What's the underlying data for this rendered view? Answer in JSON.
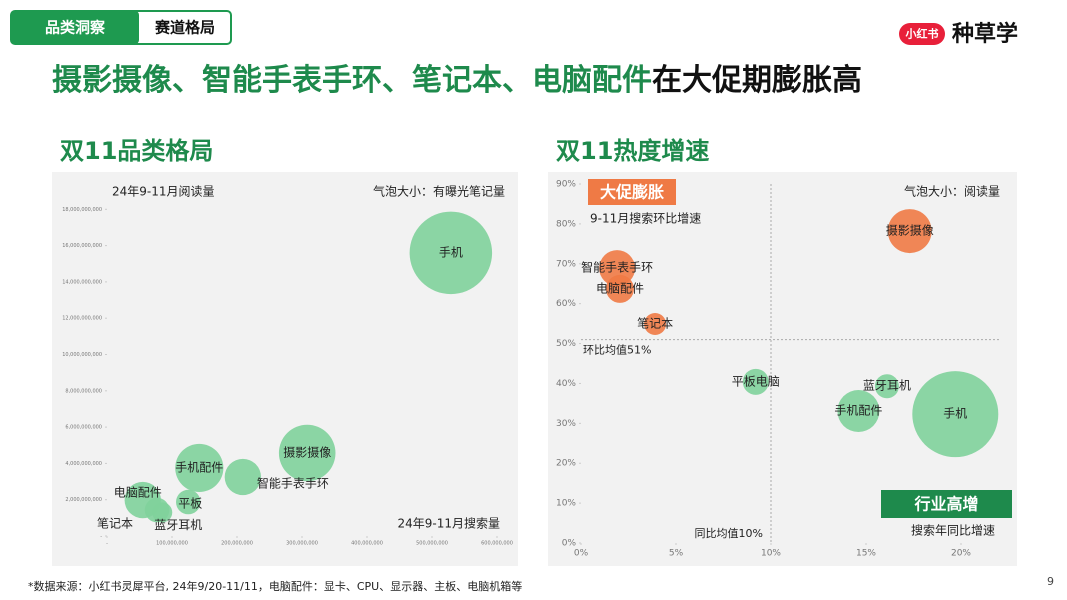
{
  "page": {
    "tabs": [
      "品类洞察",
      "赛道格局"
    ],
    "logo": "小红书",
    "brand": "种草学",
    "headline_green": "摄影摄像、智能手表手环、笔记本、电脑配件",
    "headline_black": "在大促期膨胀高",
    "footnote": "*数据来源：小红书灵犀平台, 24年9/20-11/11，电脑配件：显卡、CPU、显示器、主板、电脑机箱等",
    "page_number": "9"
  },
  "chart_data": [
    {
      "type": "bubble",
      "title": "双11品类格局",
      "y_label": "24年9-11月阅读量",
      "x_label": "24年9-11月搜索量",
      "size_note": "气泡大小：有曝光笔记量",
      "categories": [
        "手机",
        "摄影摄像",
        "智能手表手环",
        "手机配件",
        "平板",
        "电脑配件",
        "笔记本",
        "蓝牙耳机"
      ],
      "x": [
        529000000,
        308000000,
        209000000,
        142000000,
        125000000,
        55000000,
        77000000,
        85000000
      ],
      "values": [
        15600000000,
        4570000000,
        3250000000,
        3750000000,
        1870000000,
        1980000000,
        1430000000,
        1300000000
      ],
      "sizes": [
        1700,
        800,
        330,
        580,
        150,
        330,
        150,
        100
      ],
      "colors": [
        "#7fd19b",
        "#7fd19b",
        "#7fd19b",
        "#7fd19b",
        "#7fd19b",
        "#7fd19b",
        "#7fd19b",
        "#7fd19b"
      ],
      "xlim": [
        0,
        620000000
      ],
      "ylim": [
        0,
        20000000000
      ],
      "xticks": [
        {
          "value": 0,
          "label": "-"
        },
        {
          "value": 100000000,
          "label": "100,000,000"
        },
        {
          "value": 200000000,
          "label": "200,000,000"
        },
        {
          "value": 300000000,
          "label": "300,000,000"
        },
        {
          "value": 400000000,
          "label": "400,000,000"
        },
        {
          "value": 500000000,
          "label": "500,000,000"
        },
        {
          "value": 600000000,
          "label": "600,000,000"
        }
      ],
      "yticks": [
        {
          "value": 0,
          "label": "-"
        },
        {
          "value": 2000000000,
          "label": "2,000,000,000"
        },
        {
          "value": 4000000000,
          "label": "4,000,000,000"
        },
        {
          "value": 6000000000,
          "label": "6,000,000,000"
        },
        {
          "value": 8000000000,
          "label": "8,000,000,000"
        },
        {
          "value": 10000000000,
          "label": "10,000,000,000"
        },
        {
          "value": 12000000000,
          "label": "12,000,000,000"
        },
        {
          "value": 14000000000,
          "label": "14,000,000,000"
        },
        {
          "value": 16000000000,
          "label": "16,000,000,000"
        },
        {
          "value": 18000000000,
          "label": "18,000,000,000"
        }
      ]
    },
    {
      "type": "bubble",
      "title": "双11热度增速",
      "y_label": "9-11月搜索环比增速",
      "x_label": "搜索年同比增速",
      "size_note": "气泡大小：阅读量",
      "badges": [
        {
          "text": "大促膨胀",
          "color": "#ef7a45"
        },
        {
          "text": "行业高增",
          "color": "#1e8a4c"
        }
      ],
      "categories": [
        "摄影摄像",
        "智能手表手环",
        "电脑配件",
        "笔记本",
        "平板电脑",
        "蓝牙耳机",
        "手机配件",
        "手机"
      ],
      "x": [
        17.3,
        1.9,
        2.05,
        3.9,
        9.2,
        16.1,
        14.6,
        19.7
      ],
      "values": [
        78.2,
        68.9,
        63.7,
        54.9,
        40.4,
        39.3,
        33.1,
        32.3
      ],
      "sizes": [
        484,
        324,
        196,
        121,
        169,
        144,
        441,
        1849
      ],
      "colors": [
        "#ef7a45",
        "#ef7a45",
        "#ef7a45",
        "#ef7a45",
        "#7fd19b",
        "#7fd19b",
        "#7fd19b",
        "#7fd19b"
      ],
      "reference_lines": [
        {
          "axis": "y",
          "value": 51,
          "label": "环比均值51%"
        },
        {
          "axis": "x",
          "value": 10,
          "label": "同比均值10%"
        }
      ],
      "xlim": [
        0,
        22
      ],
      "ylim": [
        0,
        90
      ],
      "xticks": [
        {
          "value": 0,
          "label": "0%"
        },
        {
          "value": 5,
          "label": "5%"
        },
        {
          "value": 10,
          "label": "10%"
        },
        {
          "value": 15,
          "label": "15%"
        },
        {
          "value": 20,
          "label": "20%"
        }
      ],
      "yticks": [
        {
          "value": 0,
          "label": "0%"
        },
        {
          "value": 10,
          "label": "10%"
        },
        {
          "value": 20,
          "label": "20%"
        },
        {
          "value": 30,
          "label": "30%"
        },
        {
          "value": 40,
          "label": "40%"
        },
        {
          "value": 50,
          "label": "50%"
        },
        {
          "value": 60,
          "label": "60%"
        },
        {
          "value": 70,
          "label": "70%"
        },
        {
          "value": 80,
          "label": "80%"
        },
        {
          "value": 90,
          "label": "90%"
        }
      ]
    }
  ]
}
